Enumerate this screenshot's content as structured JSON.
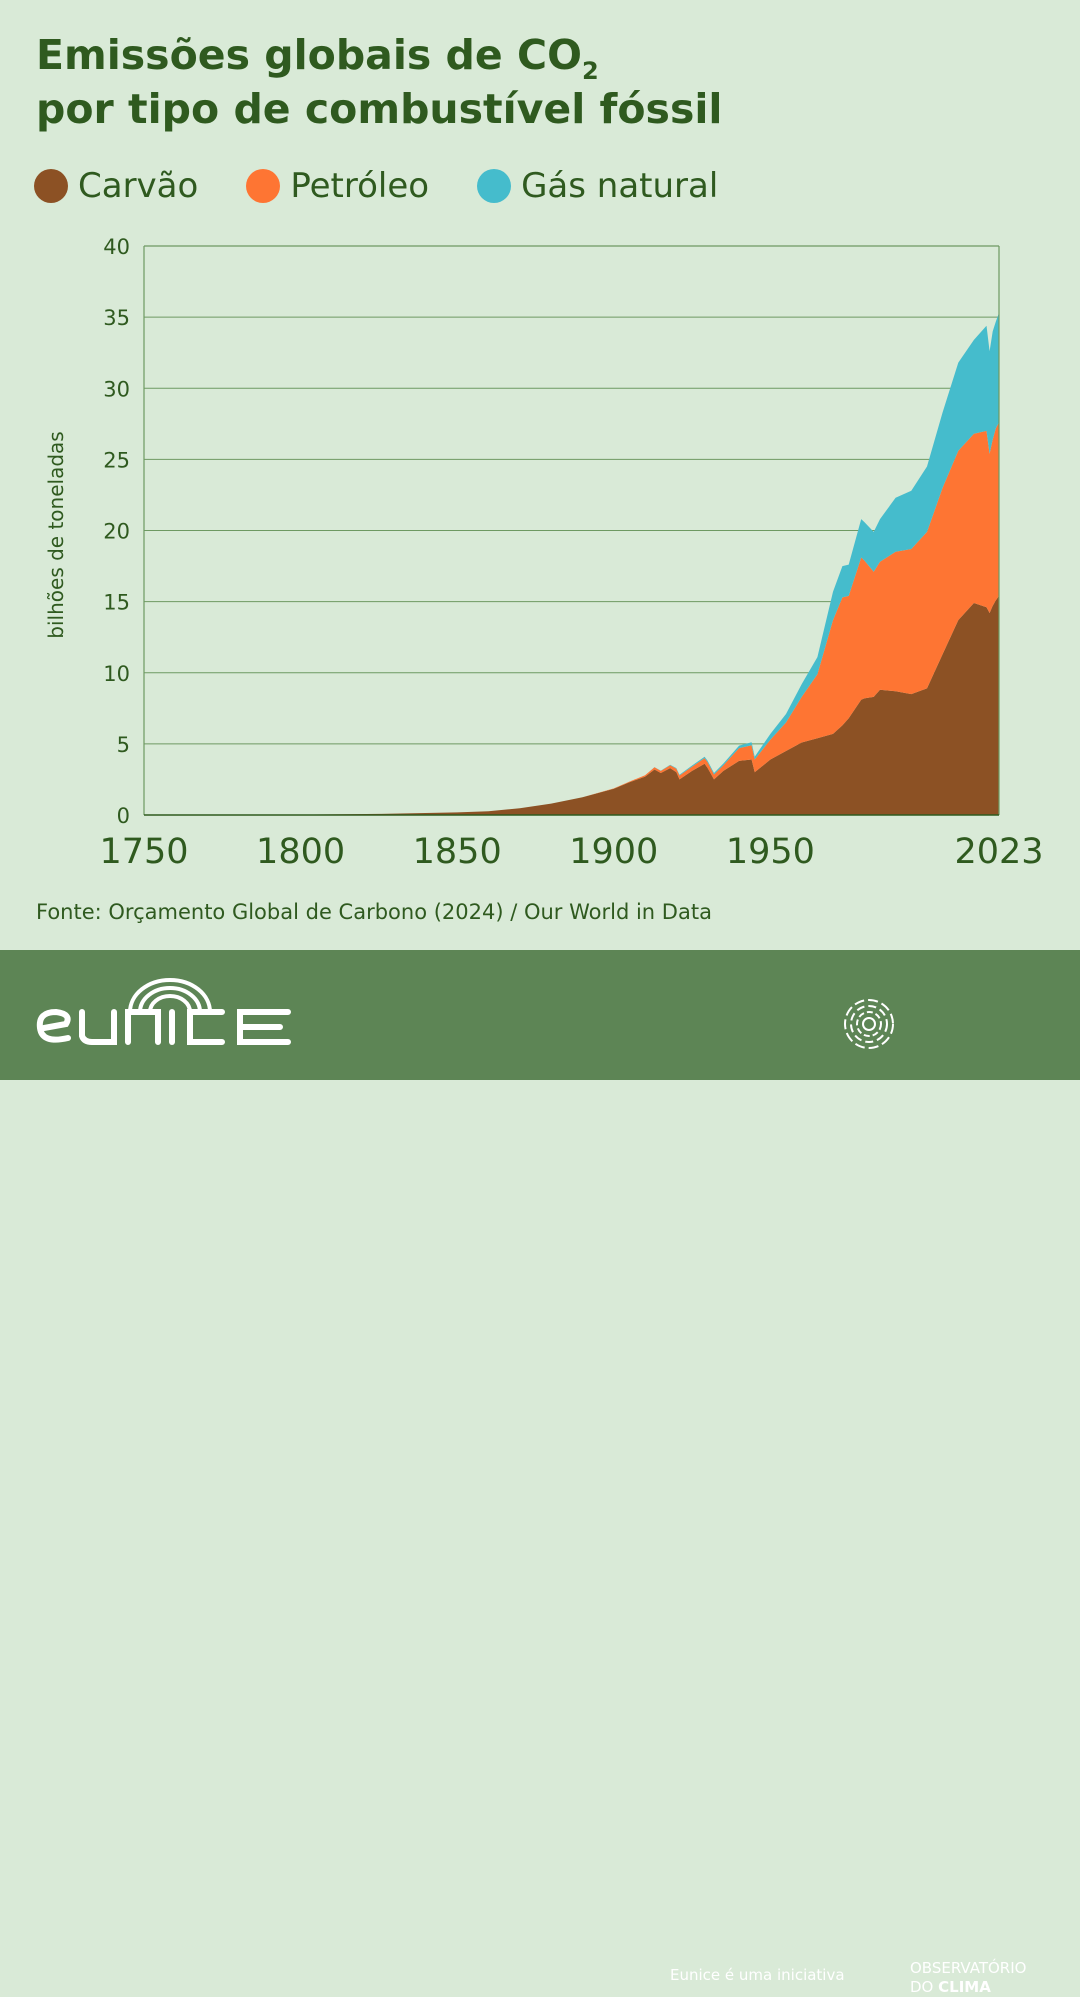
{
  "title": {
    "line1_prefix": "Emissões globais de CO",
    "line1_sub": "2",
    "line2": "por tipo de combustível fóssil"
  },
  "colors": {
    "background": "#d9ead7",
    "text": "#2f5a1f",
    "coal": "#8c5124",
    "oil": "#fe7533",
    "gas": "#45bccc",
    "grid": "#6e9962",
    "footer": "#5d8555"
  },
  "source": "Fonte: Orçamento Global de Carbono (2024) / Our World in Data",
  "footer": {
    "logo_text": "eunice",
    "initiative": "Eunice é uma iniciativa",
    "partner_line1": "OBSERVATÓRIO",
    "partner_line2_a": "DO ",
    "partner_line2_b": "CLIMA"
  },
  "chart_data": {
    "type": "area",
    "stacked": true,
    "title": "Emissões globais de CO2 por tipo de combustível fóssil",
    "ylabel": "bilhões de toneladas",
    "xlabel": "",
    "xlim": [
      1750,
      2023
    ],
    "ylim": [
      0,
      40
    ],
    "x_ticks": [
      "1750",
      "1800",
      "1850",
      "1900",
      "1950",
      "2023"
    ],
    "x_tick_values": [
      1750,
      1800,
      1850,
      1900,
      1950,
      2023
    ],
    "y_ticks": [
      0,
      5,
      10,
      15,
      20,
      25,
      30,
      35,
      40
    ],
    "grid": "horizontal",
    "legend_position": "top",
    "x": [
      1750,
      1800,
      1825,
      1850,
      1860,
      1870,
      1880,
      1890,
      1900,
      1905,
      1910,
      1913,
      1915,
      1918,
      1920,
      1921,
      1925,
      1929,
      1930,
      1932,
      1935,
      1940,
      1944,
      1945,
      1950,
      1955,
      1960,
      1965,
      1970,
      1973,
      1975,
      1979,
      1980,
      1983,
      1985,
      1990,
      1995,
      2000,
      2005,
      2010,
      2015,
      2019,
      2020,
      2021,
      2022,
      2023
    ],
    "series": [
      {
        "name": "Carvão",
        "values": [
          0.01,
          0.03,
          0.08,
          0.18,
          0.27,
          0.48,
          0.8,
          1.25,
          1.85,
          2.3,
          2.7,
          3.2,
          2.95,
          3.3,
          3.0,
          2.5,
          3.1,
          3.6,
          3.3,
          2.5,
          3.1,
          3.8,
          3.9,
          3.0,
          3.9,
          4.5,
          5.1,
          5.4,
          5.7,
          6.3,
          6.8,
          8.1,
          8.2,
          8.3,
          8.8,
          8.7,
          8.5,
          8.9,
          11.3,
          13.7,
          14.9,
          14.6,
          14.2,
          14.7,
          15.1,
          15.4
        ]
      },
      {
        "name": "Petróleo",
        "values": [
          0,
          0,
          0,
          0,
          0,
          0,
          0,
          0,
          0.02,
          0.05,
          0.1,
          0.15,
          0.15,
          0.2,
          0.25,
          0.28,
          0.3,
          0.4,
          0.4,
          0.35,
          0.4,
          0.9,
          1.0,
          0.9,
          1.4,
          2.0,
          3.2,
          4.5,
          8.0,
          9.0,
          8.6,
          10.0,
          9.7,
          8.8,
          9.0,
          9.8,
          10.2,
          11.0,
          11.7,
          11.9,
          11.9,
          12.4,
          11.2,
          11.7,
          12.1,
          12.2
        ]
      },
      {
        "name": "Gás natural",
        "values": [
          0,
          0,
          0,
          0,
          0,
          0,
          0,
          0,
          0,
          0,
          0,
          0.02,
          0.02,
          0.03,
          0.05,
          0.05,
          0.08,
          0.1,
          0.1,
          0.1,
          0.12,
          0.18,
          0.22,
          0.2,
          0.4,
          0.6,
          0.9,
          1.2,
          2.0,
          2.2,
          2.2,
          2.7,
          2.7,
          2.8,
          3.0,
          3.8,
          4.1,
          4.6,
          5.3,
          6.2,
          6.6,
          7.4,
          7.2,
          7.6,
          7.5,
          7.7
        ]
      }
    ]
  }
}
